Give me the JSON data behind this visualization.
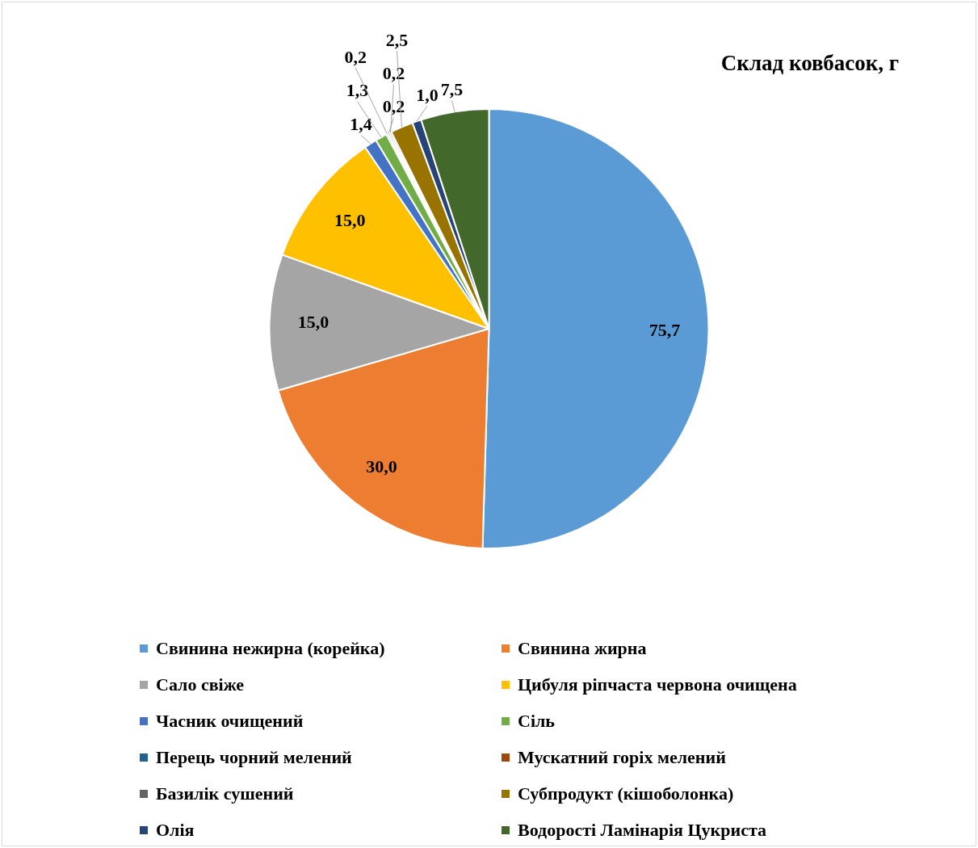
{
  "chart_data": {
    "type": "pie",
    "title": "Склад ковбасок, г",
    "categories": [
      "Свинина нежирна (корейка)",
      "Свинина жирна",
      "Сало свіже",
      "Цибуля ріпчаста червона очищена",
      "Часник очищений",
      "Сіль",
      "Перець чорний мелений",
      "Мускатний горіх мелений",
      "Базилік сушений",
      "Субпродукт (кішоболонка)",
      "Олія",
      "Водорості Ламінарія Цукриста"
    ],
    "values": [
      75.7,
      30.0,
      15.0,
      15.0,
      1.4,
      1.3,
      0.2,
      0.2,
      0.2,
      2.5,
      1.0,
      7.5
    ],
    "value_labels": [
      "75,7",
      "30,0",
      "15,0",
      "15,0",
      "1,4",
      "1,3",
      "0,2",
      "0,2",
      "0,2",
      "2,5",
      "1,0",
      "7,5"
    ],
    "colors": [
      "#5b9bd5",
      "#ed7d31",
      "#a5a5a5",
      "#ffc000",
      "#4472c4",
      "#70ad47",
      "#255e91",
      "#9e480e",
      "#636363",
      "#997300",
      "#264478",
      "#43682b"
    ],
    "legend": "bottom"
  }
}
